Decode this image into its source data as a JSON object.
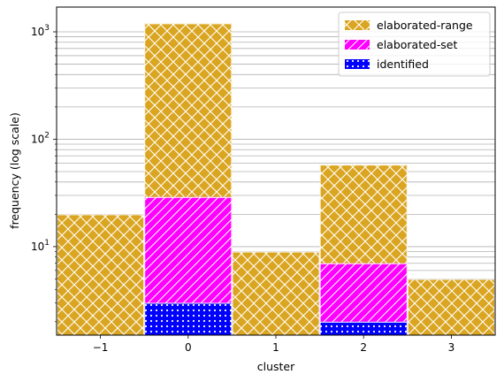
{
  "chart_data": {
    "type": "bar",
    "stacked": false,
    "overlapping": true,
    "categories": [
      "−1",
      "0",
      "1",
      "2",
      "3"
    ],
    "x": [
      -1,
      0,
      1,
      2,
      3
    ],
    "series": [
      {
        "name": "elaborated-range",
        "color": "#DAA520",
        "hatch": "xx",
        "values": [
          20,
          1200,
          9,
          58,
          5
        ]
      },
      {
        "name": "elaborated-set",
        "color": "#FF00FF",
        "hatch": "//",
        "values": [
          null,
          29,
          null,
          7,
          null
        ]
      },
      {
        "name": "identified",
        "color": "#0000FF",
        "hatch": "dots",
        "values": [
          null,
          3,
          null,
          2,
          null
        ]
      }
    ],
    "xlabel": "cluster",
    "ylabel": "frequency (log scale)",
    "yscale": "log",
    "ylim": [
      1.5,
      1700
    ],
    "xlim": [
      -1.5,
      3.5
    ],
    "yticks": [
      {
        "value": 10,
        "base": "10",
        "exp": "1"
      },
      {
        "value": 100,
        "base": "10",
        "exp": "2"
      },
      {
        "value": 1000,
        "base": "10",
        "exp": "3"
      }
    ],
    "grid": "y-major-and-minor",
    "legend_position": "top-right"
  }
}
